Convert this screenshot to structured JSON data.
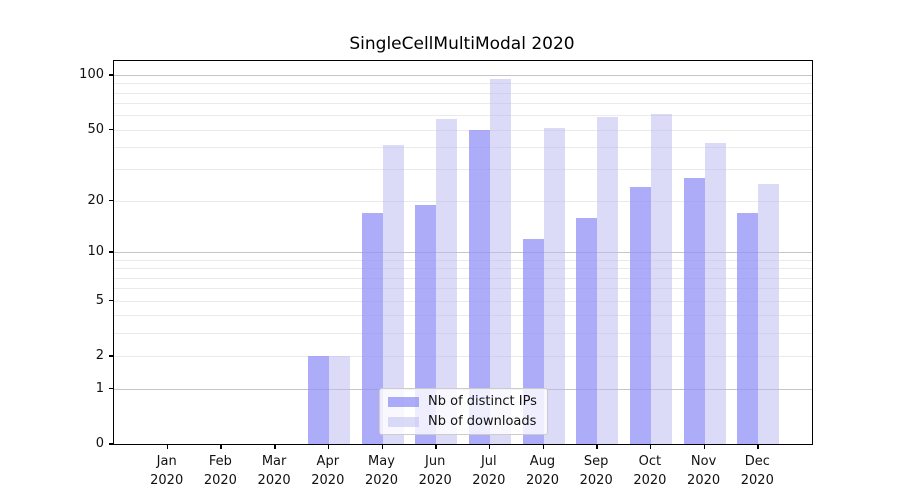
{
  "title": "SingleCellMultiModal 2020",
  "chart_data": {
    "type": "bar",
    "title": "SingleCellMultiModal 2020",
    "categories": [
      "Jan",
      "Feb",
      "Mar",
      "Apr",
      "May",
      "Jun",
      "Jul",
      "Aug",
      "Sep",
      "Oct",
      "Nov",
      "Dec"
    ],
    "x_year_label": "2020",
    "series": [
      {
        "name": "Nb of distinct IPs",
        "color": "#9090f7",
        "alpha": 0.75,
        "values": [
          0,
          0,
          0,
          2,
          17,
          19,
          50,
          12,
          16,
          24,
          27,
          17
        ]
      },
      {
        "name": "Nb of downloads",
        "color": "#b7b7f0",
        "alpha": 0.5,
        "values": [
          0,
          0,
          0,
          2,
          41,
          57,
          95,
          51,
          59,
          61,
          42,
          25
        ]
      }
    ],
    "yscale": "log1p",
    "ylim": [
      0,
      119
    ],
    "y_ticks": [
      0,
      1,
      2,
      5,
      10,
      20,
      50,
      100
    ],
    "gridlines": {
      "major": [
        1,
        10,
        100
      ],
      "minor": [
        2,
        3,
        4,
        5,
        6,
        7,
        8,
        9,
        20,
        30,
        40,
        50,
        60,
        70,
        80,
        90
      ]
    },
    "grid": "on",
    "legend_position": "lower center",
    "xlabel": "",
    "ylabel": ""
  }
}
